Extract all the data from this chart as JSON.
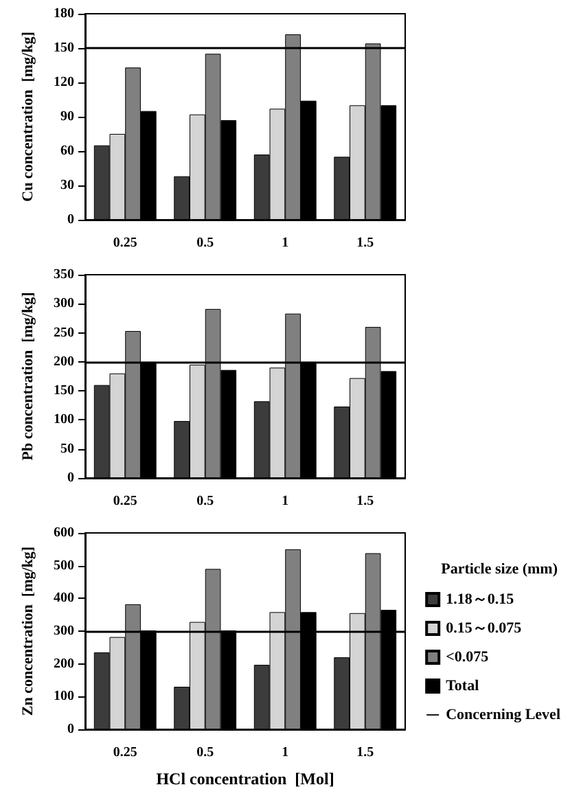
{
  "chart_data": [
    {
      "type": "bar",
      "categories": [
        "0.25",
        "0.5",
        "1",
        "1.5"
      ],
      "ylabel": "Cu concentration  [mg/kg]",
      "ylim": [
        0,
        180
      ],
      "yticks": [
        0,
        30,
        60,
        90,
        120,
        150,
        180
      ],
      "grid": false,
      "legend": false,
      "series": [
        {
          "color": "#3c3c3c",
          "values": [
            65,
            38,
            57,
            55
          ]
        },
        {
          "color": "#d4d4d4",
          "values": [
            75,
            92,
            97,
            100
          ]
        },
        {
          "color": "#808080",
          "values": [
            133,
            145,
            162,
            154
          ]
        },
        {
          "color": "#000000",
          "values": [
            95,
            87,
            104,
            100
          ]
        }
      ],
      "ref_lines": [
        {
          "axis": "y",
          "value": 150,
          "label": null,
          "color": "#000000"
        }
      ]
    },
    {
      "type": "bar",
      "categories": [
        "0.25",
        "0.5",
        "1",
        "1.5"
      ],
      "ylabel": "Pb concentration  [mg/kg]",
      "ylim": [
        0,
        350
      ],
      "yticks": [
        0,
        50,
        100,
        150,
        200,
        250,
        300,
        350
      ],
      "grid": false,
      "legend": false,
      "series": [
        {
          "color": "#3c3c3c",
          "values": [
            160,
            98,
            132,
            123
          ]
        },
        {
          "color": "#d4d4d4",
          "values": [
            180,
            195,
            190,
            172
          ]
        },
        {
          "color": "#808080",
          "values": [
            253,
            291,
            283,
            260
          ]
        },
        {
          "color": "#000000",
          "values": [
            200,
            186,
            200,
            184
          ]
        }
      ],
      "ref_lines": [
        {
          "axis": "y",
          "value": 200,
          "label": null,
          "color": "#000000"
        }
      ]
    },
    {
      "type": "bar",
      "categories": [
        "0.25",
        "0.5",
        "1",
        "1.5"
      ],
      "xlabel": "HCl concentration  [Mol]",
      "ylabel": "Zn concentration  [mg/kg]",
      "ylim": [
        0,
        600
      ],
      "yticks": [
        0,
        100,
        200,
        300,
        400,
        500,
        600
      ],
      "grid": false,
      "legend": "right",
      "legend_title": "Particle size (mm)",
      "series": [
        {
          "name": "1.18～0.15",
          "color": "#3c3c3c",
          "values": [
            235,
            130,
            197,
            220
          ]
        },
        {
          "name": "0.15～0.075",
          "color": "#d4d4d4",
          "values": [
            282,
            328,
            358,
            355
          ]
        },
        {
          "name": "<0.075",
          "color": "#808080",
          "values": [
            382,
            490,
            550,
            538
          ]
        },
        {
          "name": "Total",
          "color": "#000000",
          "values": [
            302,
            302,
            358,
            365
          ]
        }
      ],
      "ref_lines": [
        {
          "axis": "y",
          "value": 300,
          "label": "Concerning Level",
          "color": "#000000"
        }
      ]
    }
  ]
}
